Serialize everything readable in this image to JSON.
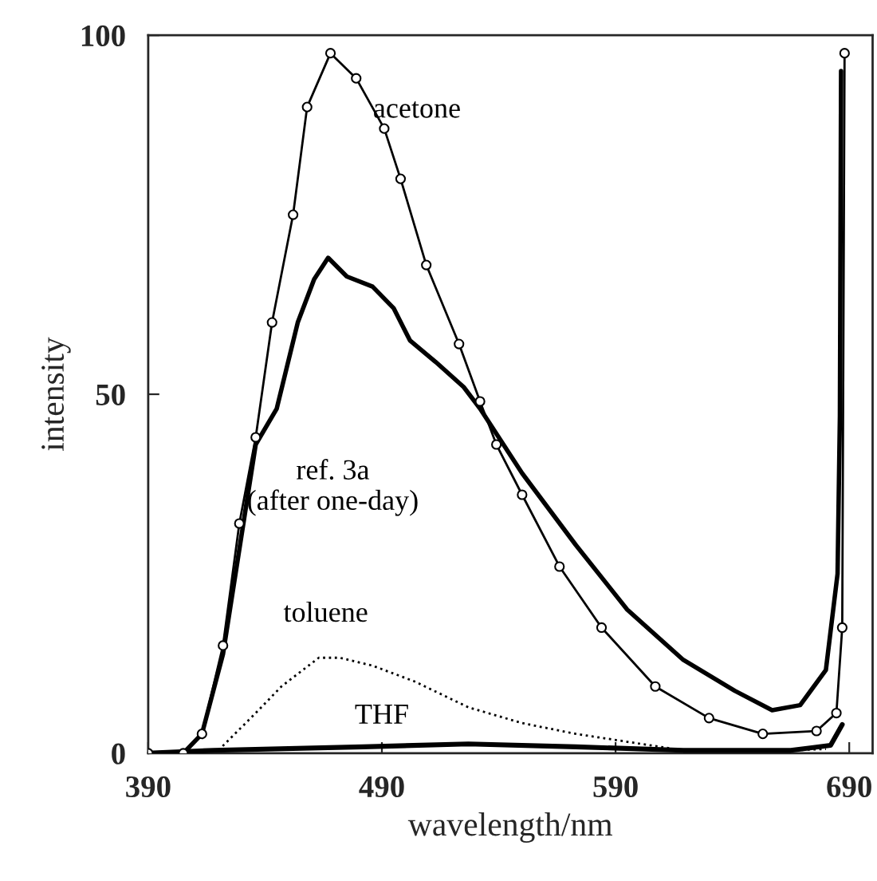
{
  "chart_data": {
    "type": "line",
    "xlabel": "wavelength/nm",
    "ylabel": "intensity",
    "xlim": [
      390,
      700
    ],
    "ylim": [
      0,
      100
    ],
    "xticks": [
      390,
      490,
      590,
      690
    ],
    "yticks": [
      0,
      50,
      100
    ],
    "grid": false,
    "legend": false,
    "series": [
      {
        "name": "acetone",
        "color": "#000000",
        "marker": "circle",
        "line_style": "solid",
        "x": [
          390,
          405,
          413,
          422,
          429,
          436,
          443,
          452,
          458,
          468,
          479,
          491,
          498,
          509,
          523,
          532,
          539,
          550,
          566,
          584,
          607,
          630,
          653,
          676,
          684.5,
          687,
          688
        ],
        "values": [
          0,
          0,
          2.7,
          15,
          32,
          44,
          60,
          75,
          90,
          97.5,
          94,
          87,
          80,
          68,
          57,
          49,
          43,
          36,
          26,
          17.5,
          9.3,
          4.9,
          2.7,
          3.1,
          5.6,
          17.5,
          97.5
        ]
      },
      {
        "name": "ref. 3a\n(after one-day)",
        "color": "#000000",
        "marker": "none",
        "line_style": "solid",
        "x": [
          390,
          405,
          413,
          422,
          436,
          445,
          454,
          461,
          467,
          475,
          486,
          495,
          502,
          513,
          525,
          532,
          550,
          573,
          595,
          619,
          641,
          657,
          669,
          680,
          685,
          686,
          686.5
        ],
        "values": [
          0,
          0,
          2.7,
          13.8,
          43,
          48,
          60,
          66,
          69,
          66.4,
          65,
          62,
          57.5,
          54.5,
          51,
          48,
          39,
          29,
          20,
          13,
          8.7,
          6,
          6.7,
          11.6,
          25,
          47,
          95
        ]
      },
      {
        "name": "toluene",
        "color": "#000000",
        "marker": "none",
        "line_style": "dotted",
        "x": [
          390,
          420,
          436,
          447,
          463,
          472,
          486,
          504,
          527,
          550,
          573,
          595,
          619,
          665,
          680
        ],
        "values": [
          0,
          0.4,
          5.6,
          9.3,
          13.3,
          13.3,
          12.2,
          10,
          6.4,
          4.2,
          2.7,
          1.6,
          0.4,
          0.4,
          0.6
        ]
      },
      {
        "name": "THF",
        "color": "#000000",
        "marker": "none",
        "line_style": "solid",
        "x": [
          390,
          418,
          482,
          527,
          573,
          619,
          665,
          682,
          687
        ],
        "values": [
          0,
          0.4,
          0.9,
          1.3,
          0.9,
          0.4,
          0.4,
          1.1,
          4
        ]
      }
    ]
  }
}
